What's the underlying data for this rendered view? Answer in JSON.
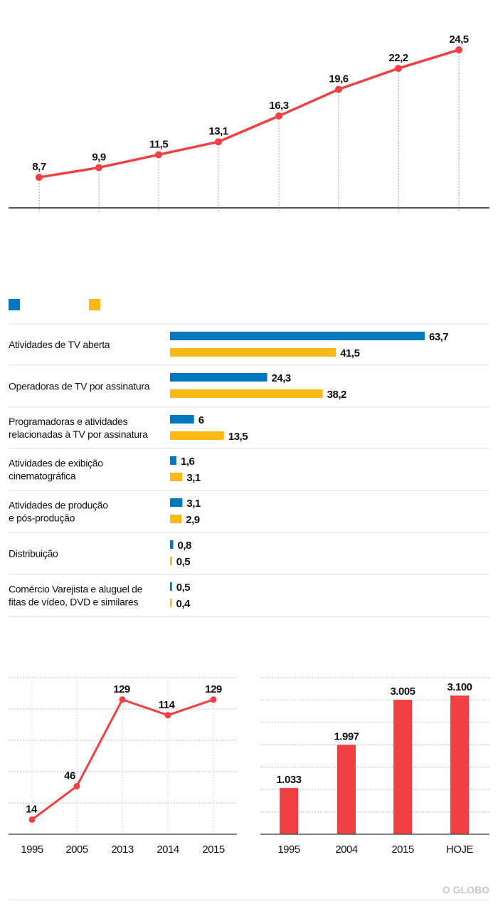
{
  "colors": {
    "line": "#ef4044",
    "series_a": "#0079c1",
    "series_b": "#fdb913",
    "grid": "#bbbbbb",
    "axis": "#555555"
  },
  "logo": "O GLOBO",
  "chart_data": [
    {
      "type": "line",
      "values": [
        8.7,
        9.9,
        11.5,
        13.1,
        16.3,
        19.6,
        22.2,
        24.5
      ],
      "labels": [
        "8,7",
        "9,9",
        "11,5",
        "13,1",
        "16,3",
        "19,6",
        "22,2",
        "24,5"
      ],
      "ylim": [
        5,
        26
      ],
      "grid": false
    },
    {
      "type": "bar",
      "orientation": "horizontal",
      "legend": "top-left",
      "categories": [
        [
          "Atividades de TV aberta"
        ],
        [
          "Operadoras de TV por assinatura"
        ],
        [
          "Programadoras e atividades",
          "relacionadas à TV por assinatura"
        ],
        [
          "Atividades de exibição",
          "cinematográfica"
        ],
        [
          "Atividades de produção",
          "e pós-produção"
        ],
        [
          "Distribuição"
        ],
        [
          "Comércio Varejista e aluguel de",
          "fitas de vídeo, DVD e similares"
        ]
      ],
      "series": [
        {
          "values": [
            63.7,
            24.3,
            6,
            1.6,
            3.1,
            0.8,
            0.5
          ],
          "labels": [
            "63,7",
            "24,3",
            "6",
            "1,6",
            "3,1",
            "0,8",
            "0,5"
          ]
        },
        {
          "values": [
            41.5,
            38.2,
            13.5,
            3.1,
            2.9,
            0.5,
            0.4
          ],
          "labels": [
            "41,5",
            "38,2",
            "13,5",
            "3,1",
            "2,9",
            "0,5",
            "0,4"
          ]
        }
      ]
    },
    {
      "type": "line",
      "categories": [
        "1995",
        "2005",
        "2013",
        "2014",
        "2015"
      ],
      "values": [
        14,
        46,
        129,
        114,
        129
      ],
      "labels": [
        "14",
        "46",
        "129",
        "114",
        "129"
      ],
      "ylim": [
        0,
        150
      ],
      "grid": true
    },
    {
      "type": "bar",
      "categories": [
        "1995",
        "2004",
        "2015",
        "HOJE"
      ],
      "values": [
        1033,
        1997,
        3005,
        3100
      ],
      "labels": [
        "1.033",
        "1.997",
        "3.005",
        "3.100"
      ],
      "ylim": [
        0,
        3500
      ],
      "grid": true
    }
  ]
}
